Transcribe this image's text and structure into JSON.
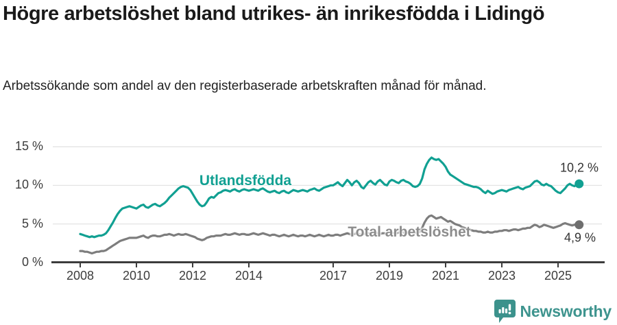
{
  "header": {
    "title": "Högre arbetslöshet bland utrikes- än inrikesfödda i Lidingö",
    "subtitle": "Arbetssökande som andel av den registerbaserade arbetskraften månad för månad."
  },
  "chart_data": {
    "type": "line",
    "unit": "%",
    "grid": "horizontal",
    "legend_position": "inline-labels",
    "x_start_year": 2008,
    "x_step_months": 1,
    "x_end": "2025-10",
    "ylim": [
      0,
      15
    ],
    "y_ticks": [
      {
        "value": 0,
        "label": "0 %"
      },
      {
        "value": 5,
        "label": "5 %"
      },
      {
        "value": 10,
        "label": "10 %"
      },
      {
        "value": 15,
        "label": "15 %"
      }
    ],
    "x_ticks": [
      {
        "year": 2008,
        "label": "2008"
      },
      {
        "year": 2010,
        "label": "2010"
      },
      {
        "year": 2012,
        "label": "2012"
      },
      {
        "year": 2014,
        "label": "2014"
      },
      {
        "year": 2017,
        "label": "2017"
      },
      {
        "year": 2019,
        "label": "2019"
      },
      {
        "year": 2021,
        "label": "2021"
      },
      {
        "year": 2023,
        "label": "2023"
      },
      {
        "year": 2025,
        "label": "2025"
      }
    ],
    "colors": {
      "grid": "#e1e1e1",
      "axis": "#3c3c3c",
      "tick_text": "#3c3c3c"
    },
    "series": [
      {
        "name": "Utlandsfödda",
        "color": "#11a092",
        "dot_color": "#11a092",
        "end_value": 10.2,
        "end_label": "10,2 %",
        "values": [
          3.7,
          3.6,
          3.5,
          3.4,
          3.3,
          3.4,
          3.3,
          3.4,
          3.5,
          3.5,
          3.6,
          3.8,
          4.2,
          4.7,
          5.2,
          5.8,
          6.3,
          6.7,
          7.0,
          7.1,
          7.2,
          7.3,
          7.2,
          7.1,
          7.0,
          7.2,
          7.4,
          7.5,
          7.2,
          7.1,
          7.3,
          7.5,
          7.6,
          7.4,
          7.3,
          7.5,
          7.7,
          8.0,
          8.4,
          8.7,
          9.0,
          9.3,
          9.6,
          9.8,
          9.9,
          9.8,
          9.7,
          9.4,
          8.9,
          8.4,
          7.9,
          7.5,
          7.3,
          7.4,
          7.8,
          8.3,
          8.5,
          8.4,
          8.7,
          9.0,
          9.1,
          9.3,
          9.4,
          9.3,
          9.2,
          9.4,
          9.5,
          9.3,
          9.2,
          9.4,
          9.5,
          9.4,
          9.3,
          9.4,
          9.5,
          9.4,
          9.3,
          9.5,
          9.6,
          9.4,
          9.2,
          9.1,
          9.2,
          9.3,
          9.1,
          9.0,
          9.2,
          9.3,
          9.1,
          9.0,
          9.2,
          9.4,
          9.3,
          9.2,
          9.3,
          9.4,
          9.3,
          9.2,
          9.4,
          9.5,
          9.6,
          9.4,
          9.3,
          9.5,
          9.7,
          9.8,
          9.9,
          10.0,
          10.0,
          10.2,
          10.4,
          10.1,
          9.9,
          10.3,
          10.7,
          10.4,
          10.0,
          10.4,
          10.6,
          10.3,
          9.8,
          9.6,
          10.0,
          10.4,
          10.6,
          10.3,
          10.1,
          10.5,
          10.7,
          10.4,
          10.1,
          10.0,
          10.5,
          10.7,
          10.6,
          10.4,
          10.3,
          10.6,
          10.7,
          10.5,
          10.4,
          10.2,
          9.9,
          9.8,
          9.9,
          10.2,
          10.9,
          12.1,
          12.8,
          13.3,
          13.6,
          13.4,
          13.3,
          13.4,
          13.1,
          12.8,
          12.4,
          11.8,
          11.4,
          11.2,
          11.0,
          10.8,
          10.6,
          10.4,
          10.2,
          10.1,
          10.0,
          9.9,
          9.8,
          9.8,
          9.7,
          9.5,
          9.2,
          9.0,
          9.3,
          9.1,
          8.9,
          9.0,
          9.2,
          9.3,
          9.4,
          9.3,
          9.2,
          9.4,
          9.5,
          9.6,
          9.7,
          9.8,
          9.6,
          9.5,
          9.7,
          9.8,
          9.9,
          10.2,
          10.5,
          10.6,
          10.4,
          10.1,
          10.0,
          10.2,
          10.0,
          9.9,
          9.6,
          9.3,
          9.1,
          9.0,
          9.3,
          9.6,
          10.0,
          10.2,
          10.0,
          9.9,
          10.1,
          10.2
        ]
      },
      {
        "name": "Total arbetslöshet",
        "color": "#7d7d7d",
        "dot_color": "#6e6e6e",
        "end_value": 4.9,
        "end_label": "4,9 %",
        "values": [
          1.5,
          1.5,
          1.4,
          1.4,
          1.3,
          1.2,
          1.3,
          1.4,
          1.4,
          1.5,
          1.5,
          1.6,
          1.8,
          2.0,
          2.2,
          2.4,
          2.6,
          2.8,
          2.9,
          3.0,
          3.1,
          3.2,
          3.2,
          3.2,
          3.2,
          3.3,
          3.4,
          3.5,
          3.3,
          3.2,
          3.4,
          3.5,
          3.5,
          3.4,
          3.4,
          3.5,
          3.6,
          3.6,
          3.7,
          3.6,
          3.5,
          3.6,
          3.7,
          3.6,
          3.6,
          3.7,
          3.6,
          3.5,
          3.4,
          3.3,
          3.1,
          3.0,
          2.9,
          3.0,
          3.2,
          3.3,
          3.4,
          3.4,
          3.5,
          3.5,
          3.5,
          3.6,
          3.7,
          3.6,
          3.6,
          3.7,
          3.8,
          3.7,
          3.6,
          3.7,
          3.7,
          3.6,
          3.6,
          3.7,
          3.8,
          3.7,
          3.6,
          3.7,
          3.8,
          3.7,
          3.6,
          3.5,
          3.6,
          3.6,
          3.5,
          3.4,
          3.5,
          3.6,
          3.5,
          3.4,
          3.5,
          3.6,
          3.5,
          3.4,
          3.5,
          3.5,
          3.4,
          3.5,
          3.6,
          3.5,
          3.4,
          3.5,
          3.6,
          3.5,
          3.4,
          3.5,
          3.6,
          3.5,
          3.5,
          3.6,
          3.6,
          3.5,
          3.6,
          3.7,
          3.8,
          3.7,
          3.6,
          3.7,
          3.8,
          3.7,
          3.6,
          3.7,
          3.8,
          3.8,
          3.7,
          3.8,
          3.9,
          3.8,
          3.7,
          3.8,
          3.8,
          3.7,
          3.8,
          3.9,
          3.8,
          3.8,
          3.9,
          4.0,
          3.9,
          3.8,
          3.9,
          3.9,
          3.8,
          3.9,
          3.9,
          4.0,
          4.5,
          5.2,
          5.7,
          6.0,
          6.1,
          5.9,
          5.7,
          5.8,
          5.9,
          5.7,
          5.5,
          5.3,
          5.4,
          5.2,
          5.0,
          4.9,
          4.8,
          4.6,
          4.5,
          4.4,
          4.3,
          4.2,
          4.1,
          4.1,
          4.0,
          4.0,
          3.9,
          3.9,
          4.0,
          3.9,
          3.9,
          4.0,
          4.0,
          4.1,
          4.1,
          4.2,
          4.2,
          4.1,
          4.2,
          4.3,
          4.3,
          4.2,
          4.3,
          4.4,
          4.4,
          4.5,
          4.5,
          4.7,
          4.9,
          4.8,
          4.6,
          4.7,
          4.9,
          4.8,
          4.7,
          4.6,
          4.5,
          4.6,
          4.7,
          4.8,
          5.0,
          5.1,
          5.0,
          4.9,
          4.8,
          4.9,
          5.0,
          4.9
        ]
      }
    ]
  },
  "footer": {
    "brand": "Newsworthy",
    "brand_color": "#3e948e",
    "logo_icon": "bar-chart-bubble-icon",
    "logo_color": "#3c928c"
  }
}
